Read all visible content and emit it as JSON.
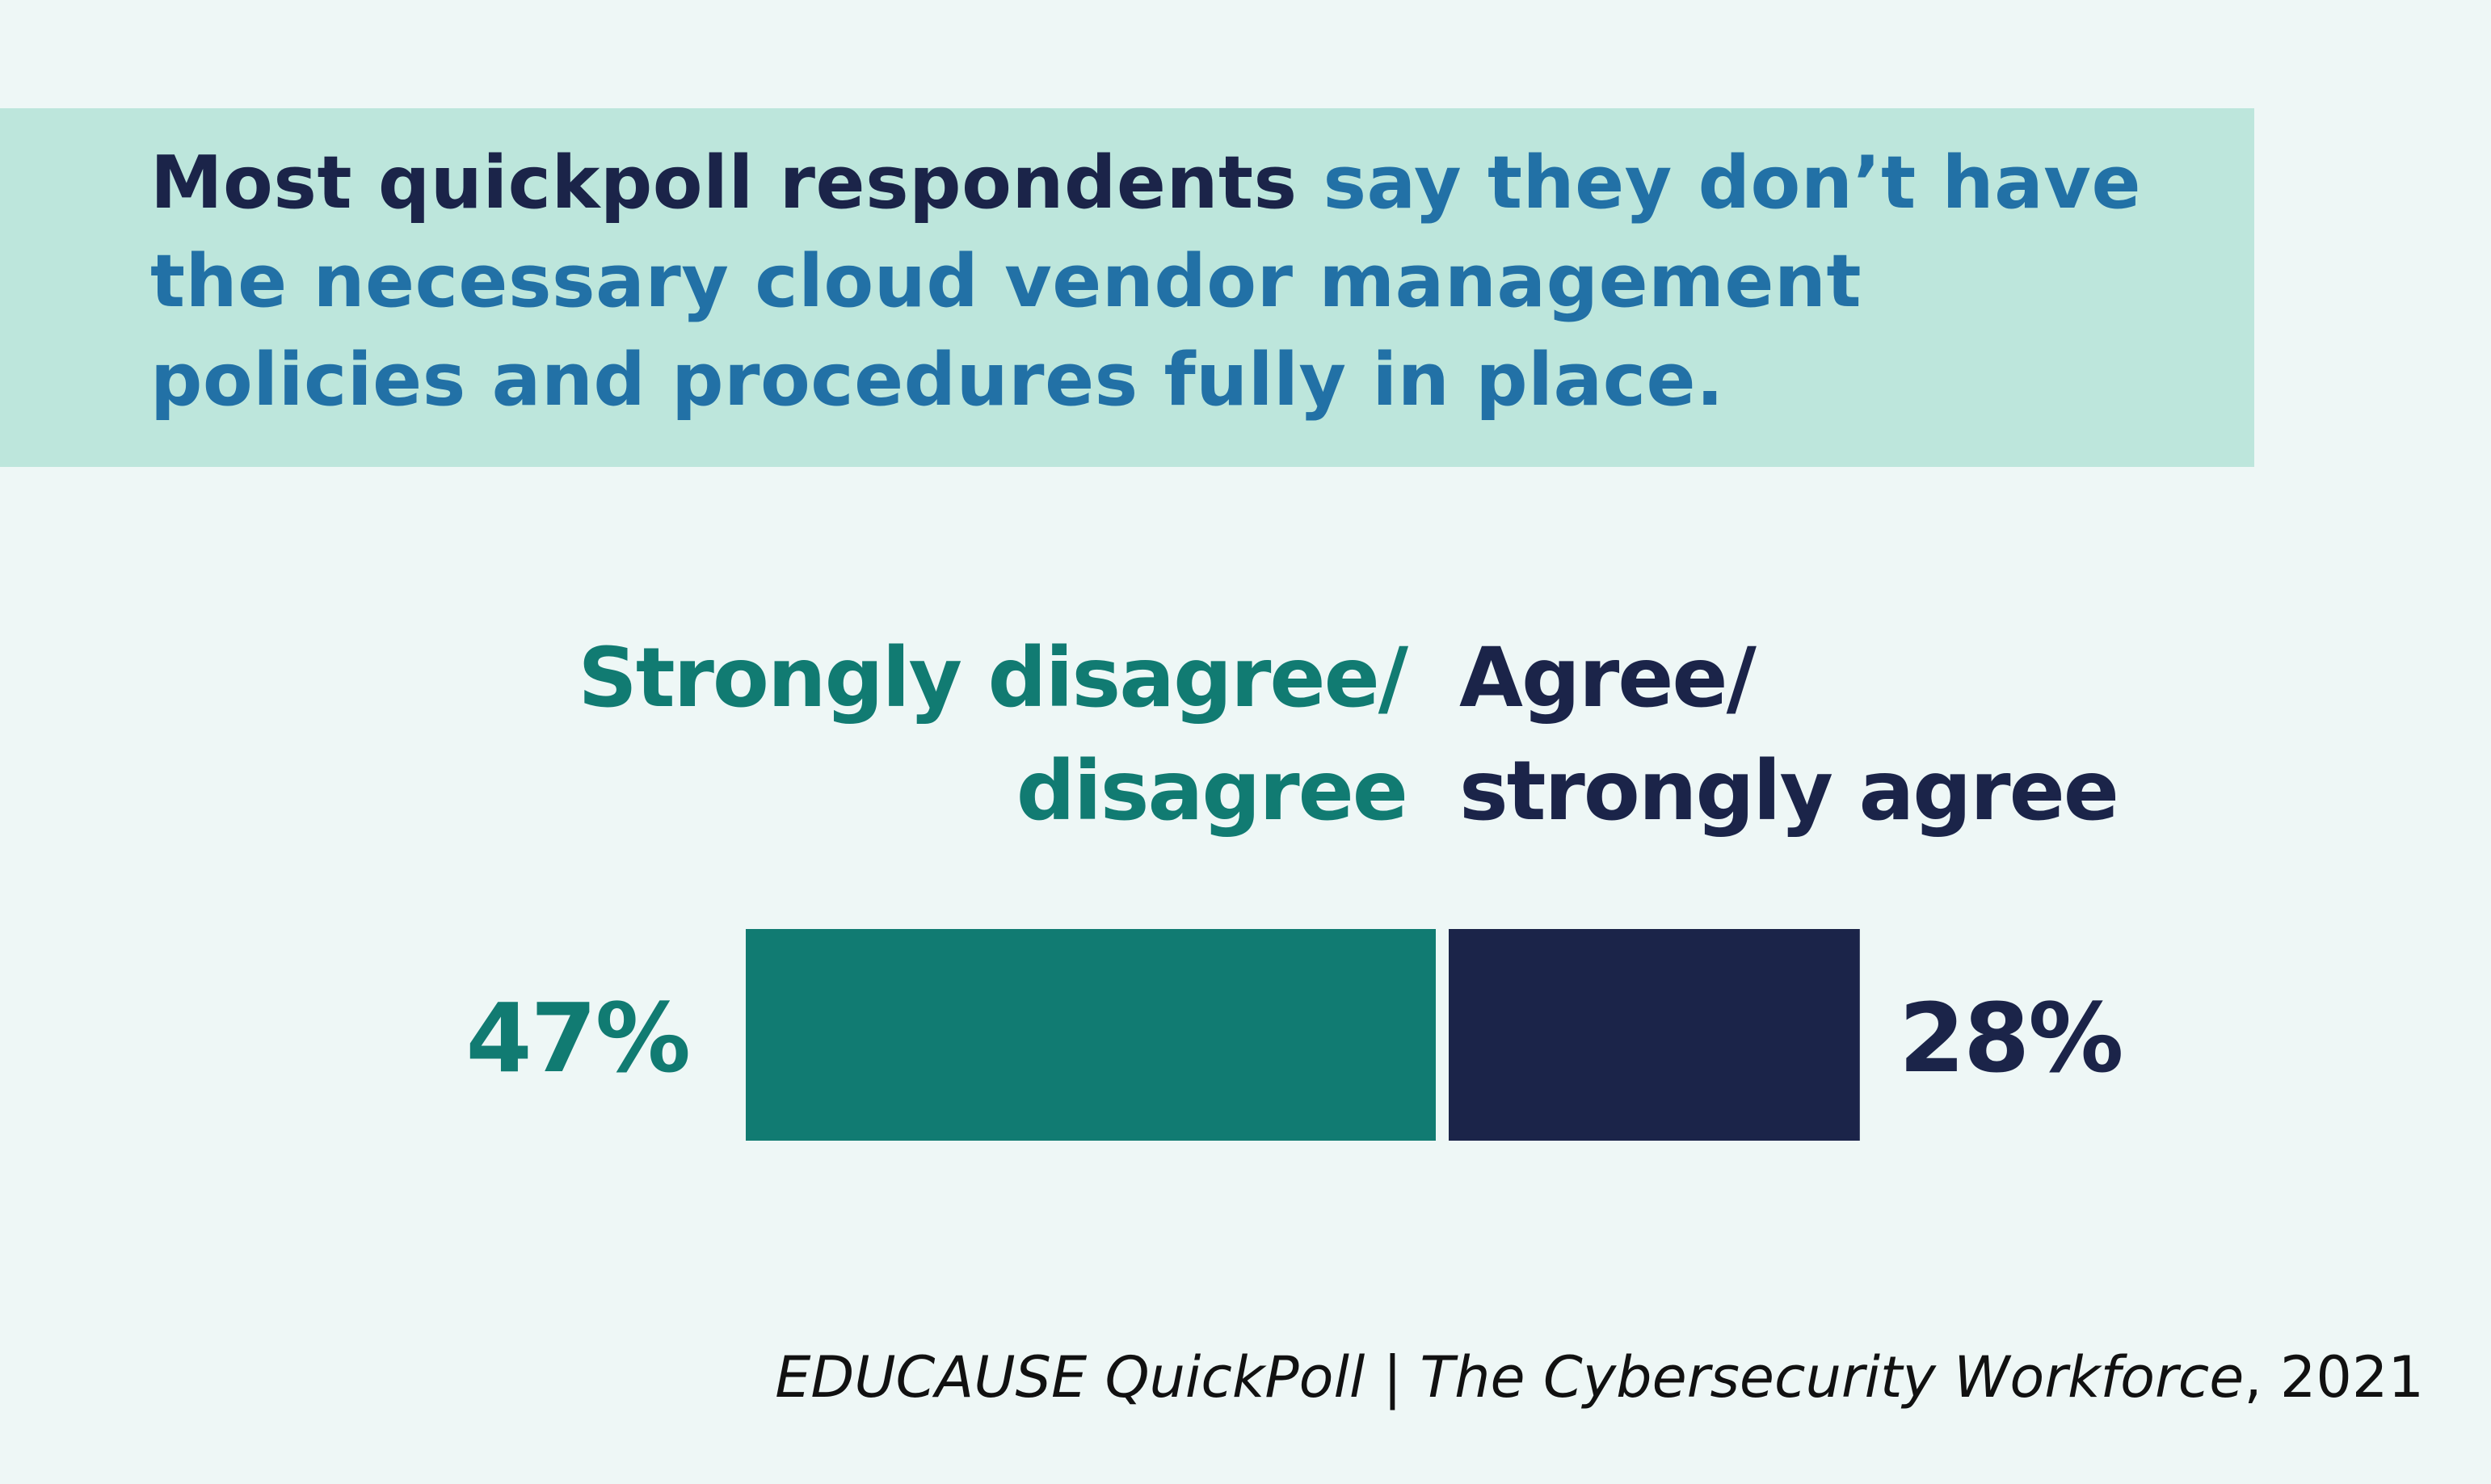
{
  "header": {
    "headline_bold": "Most quickpoll respondents",
    "headline_rest": "say they don’t have the necessary cloud vendor management policies and procedures fully in place."
  },
  "colors": {
    "background": "#eef7f6",
    "banner": "#bde6dc",
    "disagree": "#117b72",
    "agree": "#1b2449",
    "headline_accent": "#2271a6"
  },
  "chart_data": {
    "type": "bar",
    "orientation": "horizontal-stacked",
    "series": [
      {
        "name": "Strongly disagree/ disagree",
        "name_lines": [
          "Strongly disagree/",
          "disagree"
        ],
        "value": 47,
        "label": "47%",
        "color": "#117b72"
      },
      {
        "name": "Agree/ strongly agree",
        "name_lines": [
          "Agree/",
          "strongly agree"
        ],
        "value": 28,
        "label": "28%",
        "color": "#1b2449"
      }
    ],
    "unit": "%"
  },
  "source": {
    "publisher": "EDUCAUSE QuickPoll | The Cybersecurity Workforce",
    "year": ", 2021"
  }
}
